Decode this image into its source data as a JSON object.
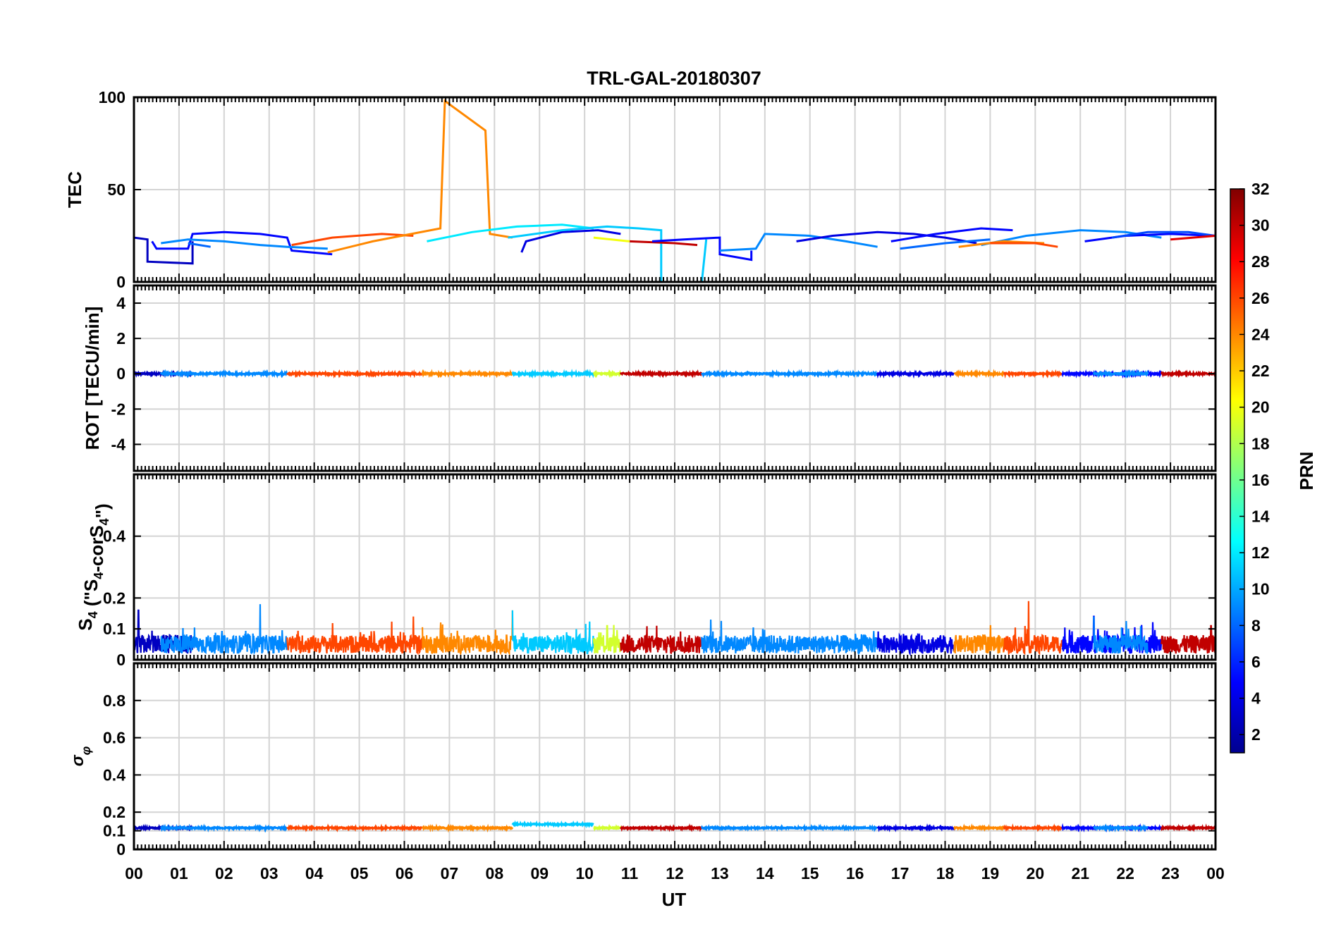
{
  "chart_data": {
    "type": "line",
    "title": "TRL-GAL-20180307",
    "xlabel": "UT",
    "x_ticks": [
      "00",
      "01",
      "02",
      "03",
      "04",
      "05",
      "06",
      "07",
      "08",
      "09",
      "10",
      "11",
      "12",
      "13",
      "14",
      "15",
      "16",
      "17",
      "18",
      "19",
      "20",
      "21",
      "22",
      "23",
      "00"
    ],
    "xlim": [
      0,
      24
    ],
    "grid": true,
    "colorbar": {
      "label": "PRN",
      "colormap": "jet",
      "range": [
        1,
        32
      ],
      "ticks": [
        "2",
        "4",
        "6",
        "8",
        "10",
        "12",
        "14",
        "16",
        "18",
        "20",
        "22",
        "24",
        "26",
        "28",
        "30",
        "32"
      ]
    },
    "panels": [
      {
        "id": "tec",
        "ylabel": "TEC",
        "ylim": [
          0,
          100
        ],
        "y_ticks": [
          "0",
          "50",
          "100"
        ],
        "series": [
          {
            "prn": 3,
            "points": [
              [
                0,
                24
              ],
              [
                0.3,
                23
              ],
              [
                0.3,
                11
              ],
              [
                1.3,
                10
              ],
              [
                1.3,
                22
              ]
            ]
          },
          {
            "prn": 5,
            "points": [
              [
                0.4,
                22
              ],
              [
                0.5,
                18
              ],
              [
                1.2,
                18
              ],
              [
                1.3,
                26
              ],
              [
                2.0,
                27
              ],
              [
                2.8,
                26
              ],
              [
                3.4,
                24
              ],
              [
                3.5,
                17
              ],
              [
                4.4,
                15
              ]
            ]
          },
          {
            "prn": 9,
            "points": [
              [
                0.6,
                21
              ],
              [
                1.2,
                23
              ],
              [
                2.0,
                22
              ],
              [
                2.8,
                20
              ],
              [
                3.4,
                19
              ],
              [
                4.3,
                18
              ]
            ]
          },
          {
            "prn": 8,
            "points": [
              [
                1.2,
                21
              ],
              [
                1.7,
                19
              ]
            ]
          },
          {
            "prn": 26,
            "points": [
              [
                3.5,
                20
              ],
              [
                4.4,
                24
              ],
              [
                5.5,
                26
              ],
              [
                6.2,
                25
              ]
            ]
          },
          {
            "prn": 24,
            "points": [
              [
                4.3,
                16
              ],
              [
                5.3,
                22
              ],
              [
                6.8,
                29
              ],
              [
                6.9,
                98
              ],
              [
                7.8,
                82
              ],
              [
                7.9,
                26
              ],
              [
                8.4,
                24
              ]
            ]
          },
          {
            "prn": 12,
            "points": [
              [
                6.5,
                22
              ],
              [
                7.5,
                27
              ],
              [
                8.5,
                30
              ],
              [
                9.5,
                31
              ],
              [
                10.2,
                29
              ]
            ]
          },
          {
            "prn": 4,
            "points": [
              [
                8.6,
                16
              ],
              [
                8.7,
                22
              ],
              [
                9.5,
                27
              ],
              [
                10.3,
                28
              ],
              [
                10.8,
                26
              ]
            ]
          },
          {
            "prn": 11,
            "points": [
              [
                8.3,
                24
              ],
              [
                9.5,
                28
              ],
              [
                10.5,
                30
              ],
              [
                11.2,
                29
              ],
              [
                11.7,
                28
              ],
              [
                11.7,
                0
              ],
              [
                12.6,
                0
              ],
              [
                12.7,
                23
              ]
            ]
          },
          {
            "prn": 20,
            "points": [
              [
                10.2,
                24
              ],
              [
                11.0,
                22
              ]
            ]
          },
          {
            "prn": 30,
            "points": [
              [
                11.0,
                22
              ],
              [
                12.0,
                21
              ],
              [
                12.5,
                20
              ]
            ]
          },
          {
            "prn": 5,
            "points": [
              [
                11.5,
                22
              ],
              [
                12.2,
                23
              ],
              [
                13.0,
                24
              ],
              [
                13.0,
                15
              ],
              [
                13.7,
                12
              ],
              [
                13.7,
                17
              ]
            ]
          },
          {
            "prn": 9,
            "points": [
              [
                13.0,
                17
              ],
              [
                13.8,
                18
              ],
              [
                14.0,
                26
              ],
              [
                15.0,
                25
              ],
              [
                15.8,
                22
              ],
              [
                16.5,
                19
              ]
            ]
          },
          {
            "prn": 4,
            "points": [
              [
                14.7,
                22
              ],
              [
                15.5,
                25
              ],
              [
                16.5,
                27
              ],
              [
                17.3,
                26
              ],
              [
                18.0,
                24
              ],
              [
                18.7,
                21
              ]
            ]
          },
          {
            "prn": 5,
            "points": [
              [
                16.8,
                22
              ],
              [
                17.8,
                26
              ],
              [
                18.8,
                29
              ],
              [
                19.5,
                28
              ]
            ]
          },
          {
            "prn": 8,
            "points": [
              [
                17.0,
                18
              ],
              [
                18.0,
                21
              ],
              [
                19.0,
                23
              ]
            ]
          },
          {
            "prn": 9,
            "points": [
              [
                18.8,
                20
              ],
              [
                19.8,
                25
              ],
              [
                21.0,
                28
              ],
              [
                22.0,
                27
              ],
              [
                22.8,
                24
              ]
            ]
          },
          {
            "prn": 24,
            "points": [
              [
                18.3,
                19
              ],
              [
                19.3,
                22
              ],
              [
                20.2,
                21
              ]
            ]
          },
          {
            "prn": 26,
            "points": [
              [
                19.0,
                21
              ],
              [
                20.0,
                21
              ],
              [
                20.5,
                19
              ]
            ]
          },
          {
            "prn": 5,
            "points": [
              [
                21.1,
                22
              ],
              [
                22.0,
                25
              ],
              [
                23.0,
                26
              ],
              [
                24.0,
                25
              ]
            ]
          },
          {
            "prn": 7,
            "points": [
              [
                21.7,
                24
              ],
              [
                22.5,
                27
              ],
              [
                23.4,
                27
              ],
              [
                24.0,
                25
              ]
            ]
          },
          {
            "prn": 29,
            "points": [
              [
                23.0,
                23
              ],
              [
                24.0,
                25
              ]
            ]
          }
        ]
      },
      {
        "id": "rot",
        "ylabel": "ROT [TECU/min]",
        "ylim": [
          -5.5,
          5
        ],
        "y_ticks": [
          "-4",
          "-2",
          "0",
          "2",
          "4"
        ],
        "noise_amplitude": 0.05
      },
      {
        "id": "s4",
        "ylabel": "S4 (\"S4-corS4\")",
        "ylim": [
          0,
          0.6
        ],
        "y_ticks": [
          "0",
          "0.1",
          "0.2",
          "0.4"
        ],
        "baseline": 0.05,
        "noise_amplitude": 0.03,
        "peaks": [
          [
            0.1,
            0.16
          ],
          [
            2.8,
            0.18
          ],
          [
            6.2,
            0.14
          ],
          [
            8.4,
            0.16
          ],
          [
            10.5,
            0.11
          ],
          [
            11.6,
            0.11
          ],
          [
            12.8,
            0.13
          ],
          [
            21.3,
            0.14
          ],
          [
            19.85,
            0.19
          ],
          [
            23.9,
            0.11
          ]
        ]
      },
      {
        "id": "sigma_phi",
        "ylabel": "σφ",
        "ylim": [
          0,
          1
        ],
        "y_ticks": [
          "0",
          "0.1",
          "0.2",
          "0.4",
          "0.6",
          "0.8"
        ],
        "baseline": 0.115,
        "noise_amplitude": 0.004
      }
    ],
    "prn_segments": [
      {
        "prn": 3,
        "x": [
          0,
          1.3
        ]
      },
      {
        "prn": 9,
        "x": [
          0.6,
          3.4
        ]
      },
      {
        "prn": 26,
        "x": [
          3.4,
          6.4
        ]
      },
      {
        "prn": 24,
        "x": [
          6.4,
          8.4
        ]
      },
      {
        "prn": 11,
        "x": [
          8.4,
          10.2
        ]
      },
      {
        "prn": 19,
        "x": [
          10.2,
          10.8
        ]
      },
      {
        "prn": 30,
        "x": [
          10.8,
          12.6
        ]
      },
      {
        "prn": 9,
        "x": [
          12.6,
          16.5
        ]
      },
      {
        "prn": 4,
        "x": [
          16.5,
          18.2
        ]
      },
      {
        "prn": 24,
        "x": [
          18.2,
          19.3
        ]
      },
      {
        "prn": 26,
        "x": [
          19.3,
          20.6
        ]
      },
      {
        "prn": 5,
        "x": [
          20.6,
          22.8
        ]
      },
      {
        "prn": 9,
        "x": [
          21.3,
          22.5
        ]
      },
      {
        "prn": 30,
        "x": [
          22.8,
          24
        ]
      }
    ]
  }
}
